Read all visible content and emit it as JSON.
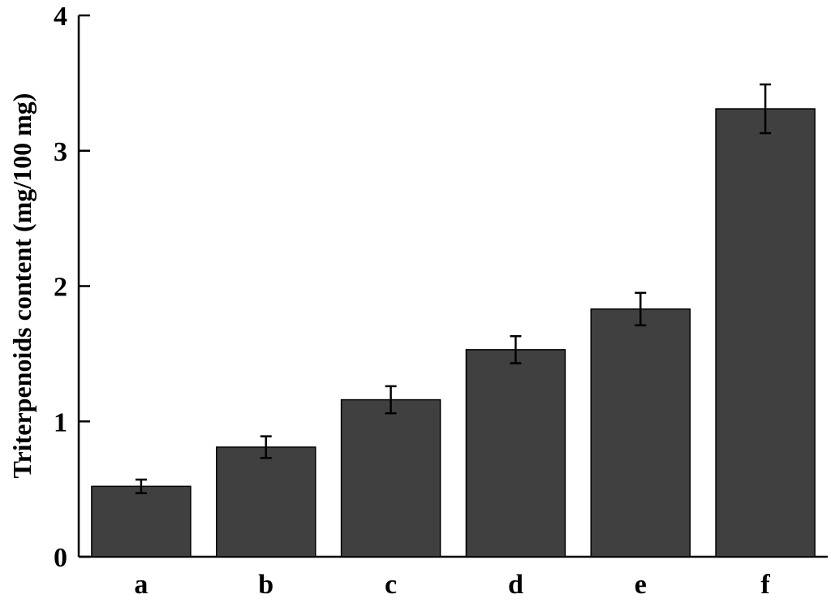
{
  "chart_data": {
    "type": "bar",
    "title": "",
    "xlabel": "",
    "ylabel": "Triterpenoids content (mg/100 mg)",
    "categories": [
      "a",
      "b",
      "c",
      "d",
      "e",
      "f"
    ],
    "values": [
      0.52,
      0.81,
      1.16,
      1.53,
      1.83,
      3.31
    ],
    "errors": [
      0.05,
      0.08,
      0.1,
      0.1,
      0.12,
      0.18
    ],
    "ylim": [
      0,
      4
    ],
    "yticks": [
      "0",
      "1",
      "2",
      "3",
      "4"
    ],
    "grid": false,
    "legend": "none",
    "bar_color": "#404040",
    "edge_color": "#000000"
  }
}
